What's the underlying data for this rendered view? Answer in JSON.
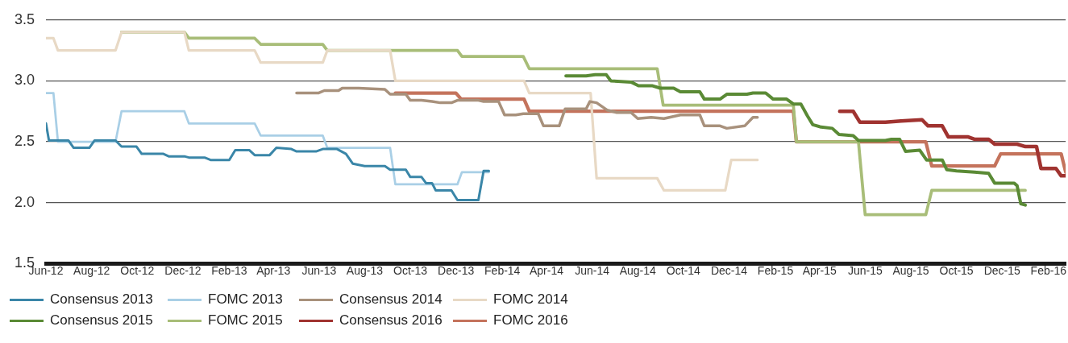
{
  "chart_data": {
    "type": "line",
    "xlim": [
      "2012-06-01",
      "2016-02-24"
    ],
    "xticks": [
      {
        "value": "2012-06-01",
        "label": "Jun-12"
      },
      {
        "value": "2012-08-01",
        "label": "Aug-12"
      },
      {
        "value": "2012-10-01",
        "label": "Oct-12"
      },
      {
        "value": "2012-12-01",
        "label": "Dec-12"
      },
      {
        "value": "2013-02-01",
        "label": "Feb-13"
      },
      {
        "value": "2013-04-01",
        "label": "Apr-13"
      },
      {
        "value": "2013-06-01",
        "label": "Jun-13"
      },
      {
        "value": "2013-08-01",
        "label": "Aug-13"
      },
      {
        "value": "2013-10-01",
        "label": "Oct-13"
      },
      {
        "value": "2013-12-01",
        "label": "Dec-13"
      },
      {
        "value": "2014-02-01",
        "label": "Feb-14"
      },
      {
        "value": "2014-04-01",
        "label": "Apr-14"
      },
      {
        "value": "2014-06-01",
        "label": "Jun-14"
      },
      {
        "value": "2014-08-01",
        "label": "Aug-14"
      },
      {
        "value": "2014-10-01",
        "label": "Oct-14"
      },
      {
        "value": "2014-12-01",
        "label": "Dec-14"
      },
      {
        "value": "2015-02-01",
        "label": "Feb-15"
      },
      {
        "value": "2015-04-01",
        "label": "Apr-15"
      },
      {
        "value": "2015-06-01",
        "label": "Jun-15"
      },
      {
        "value": "2015-08-01",
        "label": "Aug-15"
      },
      {
        "value": "2015-10-01",
        "label": "Oct-15"
      },
      {
        "value": "2015-12-01",
        "label": "Dec-15"
      },
      {
        "value": "2016-02-01",
        "label": "Feb-16"
      }
    ],
    "ylim": [
      1.5,
      3.5
    ],
    "yticks": [
      1.5,
      {
        "value": 2,
        "label": "2.0"
      },
      2.5,
      {
        "value": 3,
        "label": "3.0"
      },
      3.5
    ],
    "grid": "y",
    "legend": "bottom",
    "marker": "none",
    "line_style": "solid",
    "series": [
      {
        "name": "Consensus 2013",
        "color": "#3a86a8",
        "x": [
          "2012-06-01",
          "2012-06-05",
          "2012-07-01",
          "2012-07-08",
          "2012-07-29",
          "2012-08-05",
          "2012-09-02",
          "2012-09-10",
          "2012-09-30",
          "2012-10-07",
          "2012-11-05",
          "2012-11-12",
          "2012-12-03",
          "2012-12-09",
          "2012-12-30",
          "2013-01-07",
          "2013-02-01",
          "2013-02-09",
          "2013-02-28",
          "2013-03-07",
          "2013-03-27",
          "2013-04-05",
          "2013-04-25",
          "2013-05-02",
          "2013-05-28",
          "2013-06-06",
          "2013-06-25",
          "2013-07-07",
          "2013-07-16",
          "2013-08-01",
          "2013-08-28",
          "2013-09-04",
          "2013-09-25",
          "2013-10-01",
          "2013-10-16",
          "2013-10-22",
          "2013-10-30",
          "2013-11-04",
          "2013-11-25",
          "2013-12-03",
          "2013-12-31",
          "2014-01-07",
          "2014-01-14"
        ],
        "values": [
          2.65,
          2.51,
          2.51,
          2.45,
          2.45,
          2.51,
          2.51,
          2.46,
          2.46,
          2.4,
          2.4,
          2.38,
          2.38,
          2.37,
          2.37,
          2.35,
          2.35,
          2.43,
          2.43,
          2.39,
          2.39,
          2.45,
          2.44,
          2.42,
          2.42,
          2.44,
          2.44,
          2.4,
          2.32,
          2.3,
          2.3,
          2.27,
          2.27,
          2.21,
          2.21,
          2.16,
          2.16,
          2.1,
          2.1,
          2.02,
          2.02,
          2.26,
          2.26
        ]
      },
      {
        "name": "FOMC 2013",
        "color": "#a9cfe6",
        "x": [
          "2012-06-01",
          "2012-06-11",
          "2012-06-17",
          "2012-09-02",
          "2012-09-10",
          "2012-12-03",
          "2012-12-09",
          "2013-03-07",
          "2013-03-15",
          "2013-06-06",
          "2013-06-12",
          "2013-09-04",
          "2013-09-11",
          "2013-12-03",
          "2013-12-09",
          "2014-01-14"
        ],
        "values": [
          2.9,
          2.9,
          2.5,
          2.5,
          2.75,
          2.75,
          2.65,
          2.65,
          2.55,
          2.55,
          2.45,
          2.45,
          2.15,
          2.15,
          2.25,
          2.25
        ]
      },
      {
        "name": "Consensus 2014",
        "color": "#a8917c",
        "x": [
          "2013-05-02",
          "2013-05-31",
          "2013-06-08",
          "2013-06-27",
          "2013-07-02",
          "2013-07-24",
          "2013-08-28",
          "2013-09-04",
          "2013-09-25",
          "2013-10-01",
          "2013-10-16",
          "2013-10-30",
          "2013-11-10",
          "2013-11-25",
          "2013-12-03",
          "2013-12-31",
          "2014-01-07",
          "2014-01-27",
          "2014-02-04",
          "2014-02-19",
          "2014-03-01",
          "2014-03-21",
          "2014-03-28",
          "2014-04-18",
          "2014-04-26",
          "2014-05-24",
          "2014-05-29",
          "2014-06-07",
          "2014-06-21",
          "2014-07-04",
          "2014-07-23",
          "2014-08-01",
          "2014-08-19",
          "2014-09-05",
          "2014-09-27",
          "2014-10-23",
          "2014-10-29",
          "2014-11-19",
          "2014-11-28",
          "2014-12-22",
          "2015-01-02",
          "2015-01-08"
        ],
        "values": [
          2.9,
          2.9,
          2.92,
          2.92,
          2.94,
          2.94,
          2.93,
          2.89,
          2.89,
          2.84,
          2.84,
          2.83,
          2.82,
          2.82,
          2.84,
          2.84,
          2.83,
          2.83,
          2.72,
          2.72,
          2.73,
          2.73,
          2.63,
          2.63,
          2.77,
          2.77,
          2.83,
          2.82,
          2.76,
          2.74,
          2.74,
          2.69,
          2.7,
          2.69,
          2.72,
          2.72,
          2.63,
          2.63,
          2.61,
          2.63,
          2.7,
          2.7
        ]
      },
      {
        "name": "FOMC 2014",
        "color": "#e8d9c5",
        "x": [
          "2012-06-01",
          "2012-06-11",
          "2012-06-17",
          "2012-09-02",
          "2012-09-10",
          "2012-12-03",
          "2012-12-09",
          "2013-03-07",
          "2013-03-15",
          "2013-06-06",
          "2013-06-12",
          "2013-09-04",
          "2013-09-11",
          "2014-03-02",
          "2014-03-09",
          "2014-05-30",
          "2014-06-07",
          "2014-08-27",
          "2014-09-05",
          "2014-11-26",
          "2014-12-04",
          "2015-01-08"
        ],
        "values": [
          3.35,
          3.35,
          3.25,
          3.25,
          3.4,
          3.4,
          3.25,
          3.25,
          3.15,
          3.15,
          3.25,
          3.25,
          3.0,
          3.0,
          2.9,
          2.9,
          2.2,
          2.2,
          2.1,
          2.1,
          2.35,
          2.35
        ]
      },
      {
        "name": "Consensus 2015",
        "color": "#5a8a35",
        "x": [
          "2014-04-27",
          "2014-05-24",
          "2014-06-05",
          "2014-06-20",
          "2014-06-26",
          "2014-07-23",
          "2014-08-02",
          "2014-08-20",
          "2014-08-31",
          "2014-09-18",
          "2014-09-27",
          "2014-10-23",
          "2014-10-29",
          "2014-11-19",
          "2014-11-28",
          "2014-12-25",
          "2015-01-02",
          "2015-01-19",
          "2015-01-29",
          "2015-02-16",
          "2015-02-25",
          "2015-03-07",
          "2015-03-16",
          "2015-03-23",
          "2015-04-03",
          "2015-04-18",
          "2015-04-27",
          "2015-05-16",
          "2015-05-23",
          "2015-06-11",
          "2015-06-28",
          "2015-07-06",
          "2015-07-17",
          "2015-07-25",
          "2015-08-13",
          "2015-08-22",
          "2015-09-12",
          "2015-09-18",
          "2015-10-01",
          "2015-10-25",
          "2015-11-13",
          "2015-11-21",
          "2015-12-17",
          "2015-12-21",
          "2015-12-26",
          "2016-01-01"
        ],
        "values": [
          3.04,
          3.04,
          3.05,
          3.05,
          3.0,
          2.99,
          2.96,
          2.96,
          2.94,
          2.94,
          2.91,
          2.91,
          2.85,
          2.85,
          2.89,
          2.89,
          2.9,
          2.9,
          2.85,
          2.85,
          2.81,
          2.81,
          2.71,
          2.64,
          2.62,
          2.61,
          2.56,
          2.55,
          2.51,
          2.51,
          2.51,
          2.52,
          2.52,
          2.42,
          2.43,
          2.35,
          2.35,
          2.27,
          2.26,
          2.25,
          2.24,
          2.16,
          2.16,
          2.14,
          1.99,
          1.98
        ]
      },
      {
        "name": "FOMC 2015",
        "color": "#a8bd78",
        "x": [
          "2012-09-10",
          "2012-12-03",
          "2012-12-09",
          "2013-03-07",
          "2013-03-15",
          "2013-06-06",
          "2013-06-12",
          "2013-12-03",
          "2013-12-09",
          "2014-03-01",
          "2014-03-09",
          "2014-08-27",
          "2014-09-04",
          "2015-02-25",
          "2015-03-01",
          "2015-05-23",
          "2015-06-01",
          "2015-08-21",
          "2015-08-29",
          "2016-01-01"
        ],
        "values": [
          3.4,
          3.4,
          3.35,
          3.35,
          3.3,
          3.3,
          3.25,
          3.25,
          3.2,
          3.2,
          3.1,
          3.1,
          2.8,
          2.8,
          2.5,
          2.5,
          1.9,
          1.9,
          2.1,
          2.1
        ]
      },
      {
        "name": "Consensus 2016",
        "color": "#a03330",
        "x": [
          "2015-04-28",
          "2015-05-16",
          "2015-05-25",
          "2015-06-28",
          "2015-07-19",
          "2015-08-16",
          "2015-08-24",
          "2015-09-12",
          "2015-09-20",
          "2015-10-16",
          "2015-10-25",
          "2015-11-13",
          "2015-11-21",
          "2015-12-21",
          "2016-01-01",
          "2016-01-16",
          "2016-01-22",
          "2016-02-11",
          "2016-02-18",
          "2016-02-24"
        ],
        "values": [
          2.75,
          2.75,
          2.66,
          2.66,
          2.67,
          2.68,
          2.63,
          2.63,
          2.54,
          2.54,
          2.52,
          2.52,
          2.48,
          2.48,
          2.46,
          2.46,
          2.28,
          2.28,
          2.22,
          2.22
        ]
      },
      {
        "name": "FOMC 2016",
        "color": "#c4735c",
        "x": [
          "2013-09-11",
          "2013-12-01",
          "2013-12-08",
          "2014-03-02",
          "2014-03-09",
          "2015-02-25",
          "2015-03-01",
          "2015-08-21",
          "2015-08-29",
          "2015-11-21",
          "2015-11-29",
          "2016-02-18",
          "2016-02-24"
        ],
        "values": [
          2.9,
          2.9,
          2.85,
          2.85,
          2.75,
          2.75,
          2.5,
          2.5,
          2.3,
          2.3,
          2.4,
          2.4,
          2.25
        ]
      }
    ]
  }
}
